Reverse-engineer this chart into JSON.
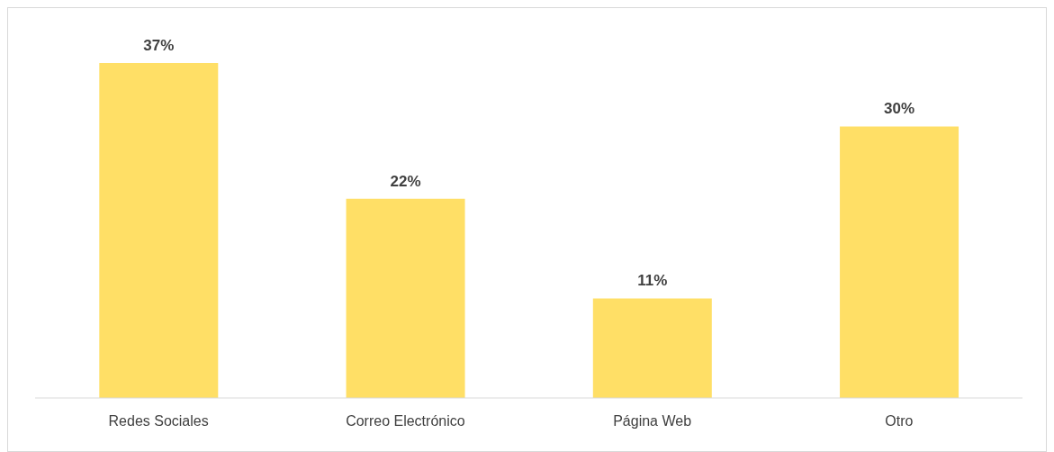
{
  "chart_data": {
    "type": "bar",
    "categories": [
      "Redes Sociales",
      "Correo Electrónico",
      "Página Web",
      "Otro"
    ],
    "values": [
      37,
      22,
      11,
      30
    ],
    "value_labels": [
      "37%",
      "22%",
      "11%",
      "30%"
    ],
    "color": "#ffdf66"
  }
}
